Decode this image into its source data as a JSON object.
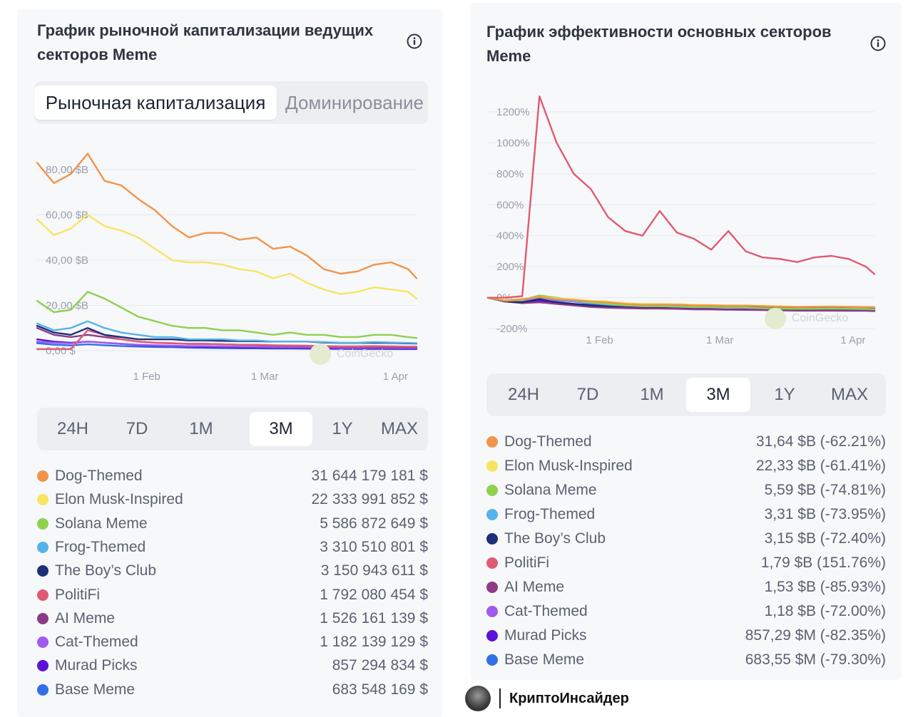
{
  "left": {
    "title_line1": "График рыночной капитализации ведущих",
    "title_line2": "секторов Meme",
    "toggle": {
      "active": "Рыночная капитализация",
      "inactive": "Доминирование"
    },
    "tabs": [
      "24H",
      "7D",
      "1M",
      "3M",
      "1Y",
      "MAX"
    ],
    "active_tab": "3M",
    "legend": [
      {
        "name": "Dog-Themed",
        "value": "31 644 179 181 $",
        "color": "#f0944b"
      },
      {
        "name": "Elon Musk-Inspired",
        "value": "22 333 991 852 $",
        "color": "#f7e463"
      },
      {
        "name": "Solana Meme",
        "value": "5 586 872 649 $",
        "color": "#8fd14f"
      },
      {
        "name": "Frog-Themed",
        "value": "3 310 510 801 $",
        "color": "#56b3e9"
      },
      {
        "name": "The Boy’s Club",
        "value": "3 150 943 611 $",
        "color": "#1c2f78"
      },
      {
        "name": "PolitiFi",
        "value": "1 792 080 454 $",
        "color": "#e05a74"
      },
      {
        "name": "AI Meme",
        "value": "1 526 161 139 $",
        "color": "#8e3a86"
      },
      {
        "name": "Cat-Themed",
        "value": "1 182 139 129 $",
        "color": "#a15af0"
      },
      {
        "name": "Murad Picks",
        "value": "857 294 834 $",
        "color": "#5a13d6"
      },
      {
        "name": "Base Meme",
        "value": "683 548 169 $",
        "color": "#2f6fe8"
      }
    ]
  },
  "right": {
    "title_line1": "График эффективности основных секторов",
    "title_line2": "Meme",
    "tabs": [
      "24H",
      "7D",
      "1M",
      "3M",
      "1Y",
      "MAX"
    ],
    "active_tab": "3M",
    "legend": [
      {
        "name": "Dog-Themed",
        "value": "31,64 $B (-62.21%)",
        "color": "#f0944b"
      },
      {
        "name": "Elon Musk-Inspired",
        "value": "22,33 $B (-61.41%)",
        "color": "#f7e463"
      },
      {
        "name": "Solana Meme",
        "value": "5,59 $B (-74.81%)",
        "color": "#8fd14f"
      },
      {
        "name": "Frog-Themed",
        "value": "3,31 $B (-73.95%)",
        "color": "#56b3e9"
      },
      {
        "name": "The Boy’s Club",
        "value": "3,15 $B (-72.40%)",
        "color": "#1c2f78"
      },
      {
        "name": "PolitiFi",
        "value": "1,79 $B (151.76%)",
        "color": "#e05a74"
      },
      {
        "name": "AI Meme",
        "value": "1,53 $B (-85.93%)",
        "color": "#8e3a86"
      },
      {
        "name": "Cat-Themed",
        "value": "1,18 $B (-72.00%)",
        "color": "#a15af0"
      },
      {
        "name": "Murad Picks",
        "value": "857,29 $M (-82.35%)",
        "color": "#5a13d6"
      },
      {
        "name": "Base Meme",
        "value": "683,55 $M (-79.30%)",
        "color": "#2f6fe8"
      }
    ]
  },
  "watermark": "CoinGecko",
  "brand": "КриптоИнсайдер",
  "chart_data": [
    {
      "type": "line",
      "x_dates": [
        "2025-01-06",
        "2025-01-10",
        "2025-01-14",
        "2025-01-18",
        "2025-01-22",
        "2025-01-26",
        "2025-01-30",
        "2025-02-03",
        "2025-02-07",
        "2025-02-11",
        "2025-02-15",
        "2025-02-19",
        "2025-02-23",
        "2025-02-27",
        "2025-03-03",
        "2025-03-07",
        "2025-03-11",
        "2025-03-15",
        "2025-03-19",
        "2025-03-23",
        "2025-03-27",
        "2025-03-31",
        "2025-04-04",
        "2025-04-06"
      ],
      "tick_labels": [
        "1 Feb",
        "1 Mar",
        "1 Apr"
      ],
      "ytick_labels": [
        "0,00 $",
        "20,00 $B",
        "40,00 $B",
        "60,00 $B",
        "80,00 $B"
      ],
      "ylim": [
        0,
        85
      ],
      "series": [
        {
          "name": "Dog-Themed",
          "values": [
            83,
            74,
            78,
            87,
            75,
            73,
            67,
            62,
            55,
            50,
            52,
            52,
            49,
            50,
            45,
            46,
            42,
            36,
            34,
            35,
            38,
            39,
            36,
            32
          ]
        },
        {
          "name": "Elon Musk-Inspired",
          "values": [
            58,
            51,
            54,
            60,
            55,
            53,
            50,
            45,
            40,
            39,
            39,
            38,
            36,
            35,
            32,
            34,
            30,
            27,
            25,
            26,
            28,
            27,
            26,
            23
          ]
        },
        {
          "name": "Solana Meme",
          "values": [
            22,
            17,
            18,
            26,
            23,
            19,
            15,
            13,
            11,
            10,
            10,
            9,
            9,
            8,
            7,
            8,
            7,
            7,
            6,
            6,
            7,
            7,
            6,
            5.6
          ]
        },
        {
          "name": "Frog-Themed",
          "values": [
            12,
            9,
            10,
            13,
            10,
            8,
            7,
            6,
            6,
            5,
            5,
            5,
            4.5,
            4.5,
            4,
            4,
            4,
            3.8,
            3.5,
            3.5,
            3.8,
            3.6,
            3.4,
            3.3
          ]
        },
        {
          "name": "The Boy’s Club",
          "values": [
            11,
            8,
            7,
            10,
            7,
            6,
            5,
            5,
            5,
            4.5,
            4.5,
            4.3,
            4.2,
            4.2,
            4,
            4,
            4,
            3.6,
            3.4,
            3.4,
            3.5,
            3.4,
            3.2,
            3.15
          ]
        },
        {
          "name": "PolitiFi",
          "values": [
            0.7,
            0.7,
            0.7,
            9,
            7,
            5,
            4,
            3.5,
            3.3,
            3,
            3,
            2.8,
            2.6,
            2.6,
            2.4,
            2.3,
            2.2,
            2,
            1.9,
            1.9,
            2,
            1.9,
            1.8,
            1.79
          ]
        },
        {
          "name": "AI Meme",
          "values": [
            10,
            7,
            6,
            7,
            6,
            5,
            4,
            3.5,
            3.2,
            3,
            3,
            2.8,
            2.6,
            2.5,
            2.3,
            2.2,
            2.1,
            1.9,
            1.7,
            1.7,
            1.7,
            1.6,
            1.55,
            1.53
          ]
        },
        {
          "name": "Cat-Themed",
          "values": [
            4,
            3.5,
            3.2,
            4,
            3.5,
            3,
            2.6,
            2.4,
            2.2,
            2,
            2,
            1.9,
            1.8,
            1.7,
            1.6,
            1.6,
            1.5,
            1.4,
            1.3,
            1.3,
            1.3,
            1.2,
            1.2,
            1.18
          ]
        },
        {
          "name": "Murad Picks",
          "values": [
            5,
            4,
            3.5,
            4,
            3.5,
            3,
            2.5,
            2.2,
            2,
            1.8,
            1.6,
            1.5,
            1.4,
            1.3,
            1.2,
            1.2,
            1.1,
            1,
            0.95,
            0.9,
            0.9,
            0.88,
            0.86,
            0.857
          ]
        },
        {
          "name": "Base Meme",
          "values": [
            3.3,
            2.6,
            2.3,
            2.8,
            2.4,
            2,
            1.8,
            1.6,
            1.5,
            1.3,
            1.2,
            1.1,
            1,
            1,
            0.95,
            0.9,
            0.85,
            0.8,
            0.75,
            0.72,
            0.72,
            0.7,
            0.69,
            0.684
          ]
        }
      ]
    },
    {
      "type": "line",
      "x_dates": [
        "2025-01-06",
        "2025-01-10",
        "2025-01-14",
        "2025-01-18",
        "2025-01-22",
        "2025-01-26",
        "2025-01-30",
        "2025-02-03",
        "2025-02-07",
        "2025-02-11",
        "2025-02-15",
        "2025-02-19",
        "2025-02-23",
        "2025-02-27",
        "2025-03-03",
        "2025-03-07",
        "2025-03-11",
        "2025-03-15",
        "2025-03-19",
        "2025-03-23",
        "2025-03-27",
        "2025-03-31",
        "2025-04-04",
        "2025-04-06"
      ],
      "tick_labels": [
        "1 Feb",
        "1 Mar",
        "1 Apr"
      ],
      "ytick_labels": [
        "-200%",
        "0%",
        "200%",
        "400%",
        "600%",
        "800%",
        "1000%",
        "1200%"
      ],
      "ylim": [
        -250,
        1250
      ],
      "series": [
        {
          "name": "PolitiFi",
          "values": [
            0,
            0,
            10,
            1300,
            1000,
            800,
            700,
            520,
            430,
            400,
            560,
            420,
            380,
            310,
            430,
            300,
            260,
            250,
            230,
            260,
            270,
            250,
            200,
            152
          ]
        },
        {
          "name": "Dog-Themed",
          "values": [
            0,
            -20,
            -10,
            5,
            -10,
            -15,
            -25,
            -30,
            -40,
            -45,
            -45,
            -45,
            -50,
            -50,
            -52,
            -52,
            -55,
            -58,
            -60,
            -59,
            -58,
            -59,
            -60,
            -62
          ]
        },
        {
          "name": "Elon Musk-Inspired",
          "values": [
            0,
            -15,
            -10,
            5,
            -5,
            -10,
            -20,
            -25,
            -35,
            -40,
            -40,
            -42,
            -45,
            -48,
            -50,
            -50,
            -52,
            -55,
            -58,
            -57,
            -56,
            -58,
            -60,
            -61
          ]
        },
        {
          "name": "Solana Meme",
          "values": [
            0,
            -20,
            -15,
            15,
            0,
            -15,
            -30,
            -40,
            -50,
            -55,
            -55,
            -58,
            -60,
            -62,
            -65,
            -65,
            -68,
            -70,
            -72,
            -72,
            -70,
            -72,
            -73,
            -75
          ]
        },
        {
          "name": "Frog-Themed",
          "values": [
            0,
            -20,
            -15,
            5,
            -10,
            -20,
            -35,
            -45,
            -50,
            -55,
            -55,
            -58,
            -62,
            -62,
            -65,
            -65,
            -68,
            -70,
            -72,
            -72,
            -70,
            -72,
            -73,
            -74
          ]
        },
        {
          "name": "The Boy’s Club",
          "values": [
            0,
            -25,
            -30,
            -10,
            -30,
            -40,
            -50,
            -55,
            -55,
            -58,
            -58,
            -60,
            -62,
            -62,
            -65,
            -65,
            -65,
            -68,
            -70,
            -70,
            -69,
            -70,
            -71,
            -72
          ]
        },
        {
          "name": "AI Meme",
          "values": [
            0,
            -25,
            -35,
            -30,
            -40,
            -50,
            -60,
            -65,
            -68,
            -70,
            -70,
            -72,
            -75,
            -76,
            -78,
            -79,
            -80,
            -82,
            -84,
            -84,
            -84,
            -85,
            -85,
            -86
          ]
        },
        {
          "name": "Cat-Themed",
          "values": [
            0,
            -15,
            -20,
            0,
            -15,
            -25,
            -35,
            -40,
            -45,
            -50,
            -50,
            -53,
            -55,
            -58,
            -60,
            -60,
            -62,
            -65,
            -68,
            -68,
            -68,
            -70,
            -71,
            -72
          ]
        },
        {
          "name": "Murad Picks",
          "values": [
            0,
            -20,
            -30,
            -20,
            -30,
            -40,
            -50,
            -56,
            -60,
            -64,
            -68,
            -70,
            -72,
            -74,
            -76,
            -76,
            -78,
            -80,
            -81,
            -82,
            -82,
            -82,
            -82,
            -82
          ]
        },
        {
          "name": "Base Meme",
          "values": [
            0,
            -20,
            -30,
            -15,
            -27,
            -40,
            -45,
            -52,
            -55,
            -60,
            -64,
            -67,
            -70,
            -70,
            -72,
            -73,
            -74,
            -76,
            -77,
            -78,
            -78,
            -79,
            -79,
            -79
          ]
        }
      ]
    }
  ]
}
